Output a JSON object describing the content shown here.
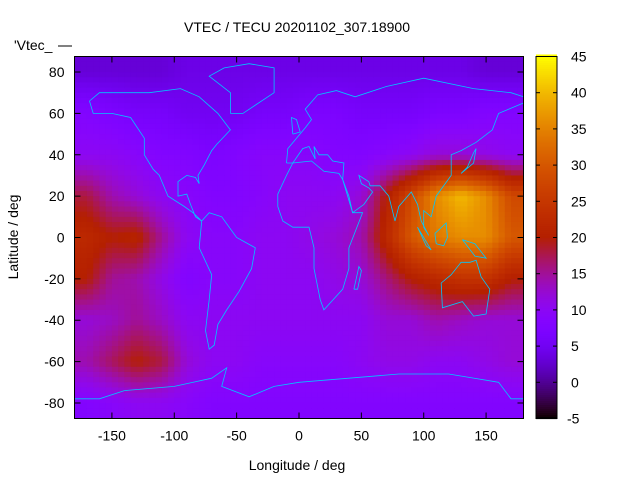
{
  "chart_data": {
    "type": "heatmap",
    "title": "VTEC / TECU 20201102_307.18900",
    "xlabel": "Longitude / deg",
    "ylabel": "Latitude / deg",
    "key_label": "'Vtec_",
    "xlim": [
      -180,
      180
    ],
    "ylim": [
      -87.5,
      87.5
    ],
    "xticks": [
      -150,
      -100,
      -50,
      0,
      50,
      100,
      150
    ],
    "yticks": [
      -80,
      -60,
      -40,
      -20,
      0,
      20,
      40,
      60,
      80
    ],
    "colorbar": {
      "range": [
        -5,
        45
      ],
      "ticks": [
        -5,
        0,
        5,
        10,
        15,
        20,
        25,
        30,
        35,
        40,
        45
      ],
      "palette": "black-blue-purple-red-orange-yellow"
    },
    "grid_lon": [
      -170,
      -150,
      -130,
      -110,
      -90,
      -70,
      -50,
      -30,
      -10,
      10,
      30,
      50,
      70,
      90,
      110,
      130,
      150,
      170
    ],
    "grid_lat": [
      80,
      60,
      40,
      20,
      0,
      -20,
      -40,
      -60,
      -80
    ],
    "values": [
      [
        3,
        3,
        3,
        3,
        4,
        4,
        4,
        4,
        4,
        4,
        4,
        4,
        4,
        4,
        4,
        4,
        3,
        3
      ],
      [
        8,
        7,
        6,
        6,
        5,
        5,
        5,
        6,
        6,
        7,
        7,
        6,
        6,
        6,
        7,
        7,
        8,
        8
      ],
      [
        10,
        10,
        9,
        8,
        8,
        7,
        8,
        9,
        9,
        9,
        8,
        8,
        9,
        10,
        12,
        12,
        11,
        10
      ],
      [
        18,
        14,
        12,
        10,
        9,
        8,
        8,
        9,
        10,
        10,
        10,
        12,
        20,
        28,
        36,
        40,
        36,
        28
      ],
      [
        22,
        20,
        21,
        15,
        10,
        9,
        9,
        10,
        10,
        11,
        12,
        14,
        22,
        30,
        34,
        36,
        36,
        30
      ],
      [
        20,
        15,
        14,
        11,
        8,
        9,
        9,
        10,
        10,
        10,
        11,
        12,
        16,
        20,
        22,
        24,
        24,
        20
      ],
      [
        12,
        13,
        15,
        13,
        10,
        10,
        10,
        10,
        10,
        10,
        10,
        10,
        12,
        12,
        14,
        13,
        12,
        12
      ],
      [
        14,
        17,
        20,
        18,
        12,
        10,
        10,
        9,
        9,
        9,
        9,
        10,
        11,
        11,
        10,
        10,
        11,
        12
      ],
      [
        8,
        9,
        10,
        10,
        9,
        8,
        8,
        8,
        8,
        8,
        8,
        8,
        8,
        8,
        8,
        8,
        8,
        8
      ]
    ],
    "overlay": "coastlines",
    "overlay_color": "#00c8ff"
  }
}
